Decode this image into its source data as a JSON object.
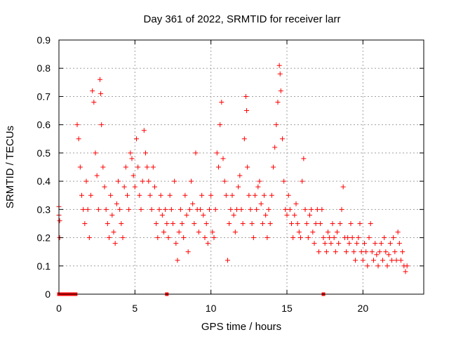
{
  "chart_data": {
    "type": "scatter",
    "title": "Day 361 of 2022, SRMTID for receiver larr",
    "xlabel": "GPS time / hours",
    "ylabel": "SRMTID / TECUs",
    "xlim": [
      0,
      24
    ],
    "ylim": [
      0,
      0.9
    ],
    "xticks": [
      0,
      5,
      10,
      15,
      20
    ],
    "yticks": [
      0,
      0.1,
      0.2,
      0.3,
      0.4,
      0.5,
      0.6,
      0.7,
      0.8,
      0.9
    ],
    "xtick_labels": [
      "0",
      "5",
      "10",
      "15",
      "20"
    ],
    "ytick_labels": [
      "0",
      "0.1",
      "0.2",
      "0.3",
      "0.4",
      "0.5",
      "0.6",
      "0.7",
      "0.8",
      "0.9"
    ],
    "grid": true,
    "marker": "+",
    "color": "#ff0000",
    "series": [
      {
        "name": "SRMTID",
        "points": [
          [
            0.0,
            0.31
          ],
          [
            0.0,
            0.28
          ],
          [
            0.05,
            0.26
          ],
          [
            0.05,
            0.2
          ],
          [
            1.2,
            0.6
          ],
          [
            1.3,
            0.55
          ],
          [
            1.4,
            0.45
          ],
          [
            1.5,
            0.35
          ],
          [
            1.6,
            0.3
          ],
          [
            1.7,
            0.25
          ],
          [
            1.8,
            0.4
          ],
          [
            1.9,
            0.3
          ],
          [
            2.0,
            0.2
          ],
          [
            2.1,
            0.35
          ],
          [
            2.2,
            0.72
          ],
          [
            2.3,
            0.68
          ],
          [
            2.4,
            0.5
          ],
          [
            2.5,
            0.42
          ],
          [
            2.6,
            0.3
          ],
          [
            2.7,
            0.76
          ],
          [
            2.75,
            0.71
          ],
          [
            2.8,
            0.6
          ],
          [
            2.9,
            0.45
          ],
          [
            3.0,
            0.38
          ],
          [
            3.1,
            0.3
          ],
          [
            3.2,
            0.25
          ],
          [
            3.3,
            0.2
          ],
          [
            3.4,
            0.35
          ],
          [
            3.5,
            0.28
          ],
          [
            3.6,
            0.22
          ],
          [
            3.7,
            0.18
          ],
          [
            3.8,
            0.32
          ],
          [
            3.9,
            0.4
          ],
          [
            4.0,
            0.3
          ],
          [
            4.1,
            0.25
          ],
          [
            4.2,
            0.2
          ],
          [
            4.3,
            0.38
          ],
          [
            4.4,
            0.45
          ],
          [
            4.5,
            0.35
          ],
          [
            4.6,
            0.3
          ],
          [
            4.7,
            0.5
          ],
          [
            4.8,
            0.48
          ],
          [
            4.9,
            0.42
          ],
          [
            5.0,
            0.38
          ],
          [
            5.1,
            0.55
          ],
          [
            5.2,
            0.45
          ],
          [
            5.3,
            0.35
          ],
          [
            5.4,
            0.3
          ],
          [
            5.5,
            0.4
          ],
          [
            5.6,
            0.58
          ],
          [
            5.7,
            0.5
          ],
          [
            5.8,
            0.45
          ],
          [
            5.9,
            0.4
          ],
          [
            6.0,
            0.35
          ],
          [
            6.1,
            0.3
          ],
          [
            6.2,
            0.45
          ],
          [
            6.3,
            0.38
          ],
          [
            6.4,
            0.25
          ],
          [
            6.5,
            0.2
          ],
          [
            6.6,
            0.3
          ],
          [
            6.7,
            0.35
          ],
          [
            6.8,
            0.28
          ],
          [
            6.9,
            0.22
          ],
          [
            7.0,
            0.3
          ],
          [
            7.1,
            0.25
          ],
          [
            7.2,
            0.2
          ],
          [
            7.3,
            0.35
          ],
          [
            7.4,
            0.3
          ],
          [
            7.5,
            0.25
          ],
          [
            7.6,
            0.4
          ],
          [
            7.7,
            0.18
          ],
          [
            7.8,
            0.12
          ],
          [
            7.9,
            0.22
          ],
          [
            8.0,
            0.3
          ],
          [
            8.1,
            0.25
          ],
          [
            8.2,
            0.2
          ],
          [
            8.3,
            0.35
          ],
          [
            8.4,
            0.28
          ],
          [
            8.5,
            0.15
          ],
          [
            8.6,
            0.3
          ],
          [
            8.7,
            0.4
          ],
          [
            8.8,
            0.32
          ],
          [
            8.9,
            0.25
          ],
          [
            9.0,
            0.5
          ],
          [
            9.1,
            0.3
          ],
          [
            9.2,
            0.22
          ],
          [
            9.3,
            0.3
          ],
          [
            9.4,
            0.35
          ],
          [
            9.5,
            0.28
          ],
          [
            9.6,
            0.2
          ],
          [
            9.7,
            0.25
          ],
          [
            9.8,
            0.18
          ],
          [
            9.9,
            0.3
          ],
          [
            10.0,
            0.35
          ],
          [
            10.1,
            0.22
          ],
          [
            10.2,
            0.2
          ],
          [
            10.3,
            0.3
          ],
          [
            10.4,
            0.5
          ],
          [
            10.5,
            0.45
          ],
          [
            10.6,
            0.6
          ],
          [
            10.7,
            0.68
          ],
          [
            10.8,
            0.48
          ],
          [
            10.9,
            0.4
          ],
          [
            11.0,
            0.35
          ],
          [
            11.1,
            0.12
          ],
          [
            11.2,
            0.25
          ],
          [
            11.3,
            0.3
          ],
          [
            11.4,
            0.35
          ],
          [
            11.5,
            0.28
          ],
          [
            11.6,
            0.22
          ],
          [
            11.7,
            0.3
          ],
          [
            11.8,
            0.38
          ],
          [
            11.9,
            0.42
          ],
          [
            12.0,
            0.3
          ],
          [
            12.1,
            0.25
          ],
          [
            12.2,
            0.55
          ],
          [
            12.3,
            0.7
          ],
          [
            12.35,
            0.65
          ],
          [
            12.4,
            0.45
          ],
          [
            12.5,
            0.35
          ],
          [
            12.6,
            0.3
          ],
          [
            12.7,
            0.25
          ],
          [
            12.8,
            0.2
          ],
          [
            12.9,
            0.35
          ],
          [
            13.0,
            0.3
          ],
          [
            13.1,
            0.38
          ],
          [
            13.2,
            0.4
          ],
          [
            13.3,
            0.32
          ],
          [
            13.4,
            0.25
          ],
          [
            13.5,
            0.35
          ],
          [
            13.6,
            0.28
          ],
          [
            13.7,
            0.2
          ],
          [
            13.8,
            0.3
          ],
          [
            13.9,
            0.25
          ],
          [
            14.0,
            0.35
          ],
          [
            14.1,
            0.45
          ],
          [
            14.2,
            0.52
          ],
          [
            14.3,
            0.6
          ],
          [
            14.4,
            0.68
          ],
          [
            14.5,
            0.81
          ],
          [
            14.55,
            0.78
          ],
          [
            14.6,
            0.72
          ],
          [
            14.7,
            0.55
          ],
          [
            14.8,
            0.4
          ],
          [
            14.9,
            0.3
          ],
          [
            15.0,
            0.28
          ],
          [
            15.1,
            0.35
          ],
          [
            15.2,
            0.3
          ],
          [
            15.3,
            0.25
          ],
          [
            15.4,
            0.2
          ],
          [
            15.5,
            0.28
          ],
          [
            15.6,
            0.32
          ],
          [
            15.7,
            0.25
          ],
          [
            15.8,
            0.22
          ],
          [
            15.9,
            0.2
          ],
          [
            16.0,
            0.4
          ],
          [
            16.1,
            0.48
          ],
          [
            16.2,
            0.3
          ],
          [
            16.3,
            0.25
          ],
          [
            16.4,
            0.2
          ],
          [
            16.5,
            0.28
          ],
          [
            16.6,
            0.3
          ],
          [
            16.7,
            0.22
          ],
          [
            16.8,
            0.18
          ],
          [
            16.9,
            0.25
          ],
          [
            17.0,
            0.3
          ],
          [
            17.1,
            0.15
          ],
          [
            17.2,
            0.25
          ],
          [
            17.3,
            0.3
          ],
          [
            17.4,
            0.2
          ],
          [
            17.5,
            0.18
          ],
          [
            17.6,
            0.15
          ],
          [
            17.7,
            0.22
          ],
          [
            17.8,
            0.2
          ],
          [
            17.9,
            0.18
          ],
          [
            18.0,
            0.25
          ],
          [
            18.1,
            0.2
          ],
          [
            18.2,
            0.15
          ],
          [
            18.3,
            0.22
          ],
          [
            18.4,
            0.18
          ],
          [
            18.5,
            0.25
          ],
          [
            18.6,
            0.3
          ],
          [
            18.7,
            0.38
          ],
          [
            18.8,
            0.2
          ],
          [
            18.9,
            0.15
          ],
          [
            19.0,
            0.2
          ],
          [
            19.1,
            0.18
          ],
          [
            19.2,
            0.25
          ],
          [
            19.3,
            0.2
          ],
          [
            19.4,
            0.15
          ],
          [
            19.5,
            0.12
          ],
          [
            19.6,
            0.18
          ],
          [
            19.7,
            0.2
          ],
          [
            19.8,
            0.25
          ],
          [
            19.9,
            0.15
          ],
          [
            20.0,
            0.12
          ],
          [
            20.1,
            0.18
          ],
          [
            20.2,
            0.15
          ],
          [
            20.3,
            0.1
          ],
          [
            20.4,
            0.2
          ],
          [
            20.5,
            0.25
          ],
          [
            20.6,
            0.15
          ],
          [
            20.7,
            0.12
          ],
          [
            20.8,
            0.18
          ],
          [
            20.9,
            0.14
          ],
          [
            21.0,
            0.1
          ],
          [
            21.1,
            0.15
          ],
          [
            21.2,
            0.18
          ],
          [
            21.3,
            0.12
          ],
          [
            21.4,
            0.2
          ],
          [
            21.5,
            0.15
          ],
          [
            21.6,
            0.1
          ],
          [
            21.7,
            0.14
          ],
          [
            21.8,
            0.18
          ],
          [
            21.9,
            0.12
          ],
          [
            22.0,
            0.2
          ],
          [
            22.1,
            0.15
          ],
          [
            22.2,
            0.12
          ],
          [
            22.3,
            0.22
          ],
          [
            22.4,
            0.18
          ],
          [
            22.5,
            0.12
          ],
          [
            22.6,
            0.15
          ],
          [
            22.7,
            0.1
          ],
          [
            22.8,
            0.08
          ],
          [
            22.9,
            0.1
          ]
        ]
      }
    ],
    "zero_markers_x": [
      0.0,
      0.2,
      0.4,
      0.6,
      0.8,
      1.0,
      1.1,
      7.1,
      17.4
    ]
  }
}
